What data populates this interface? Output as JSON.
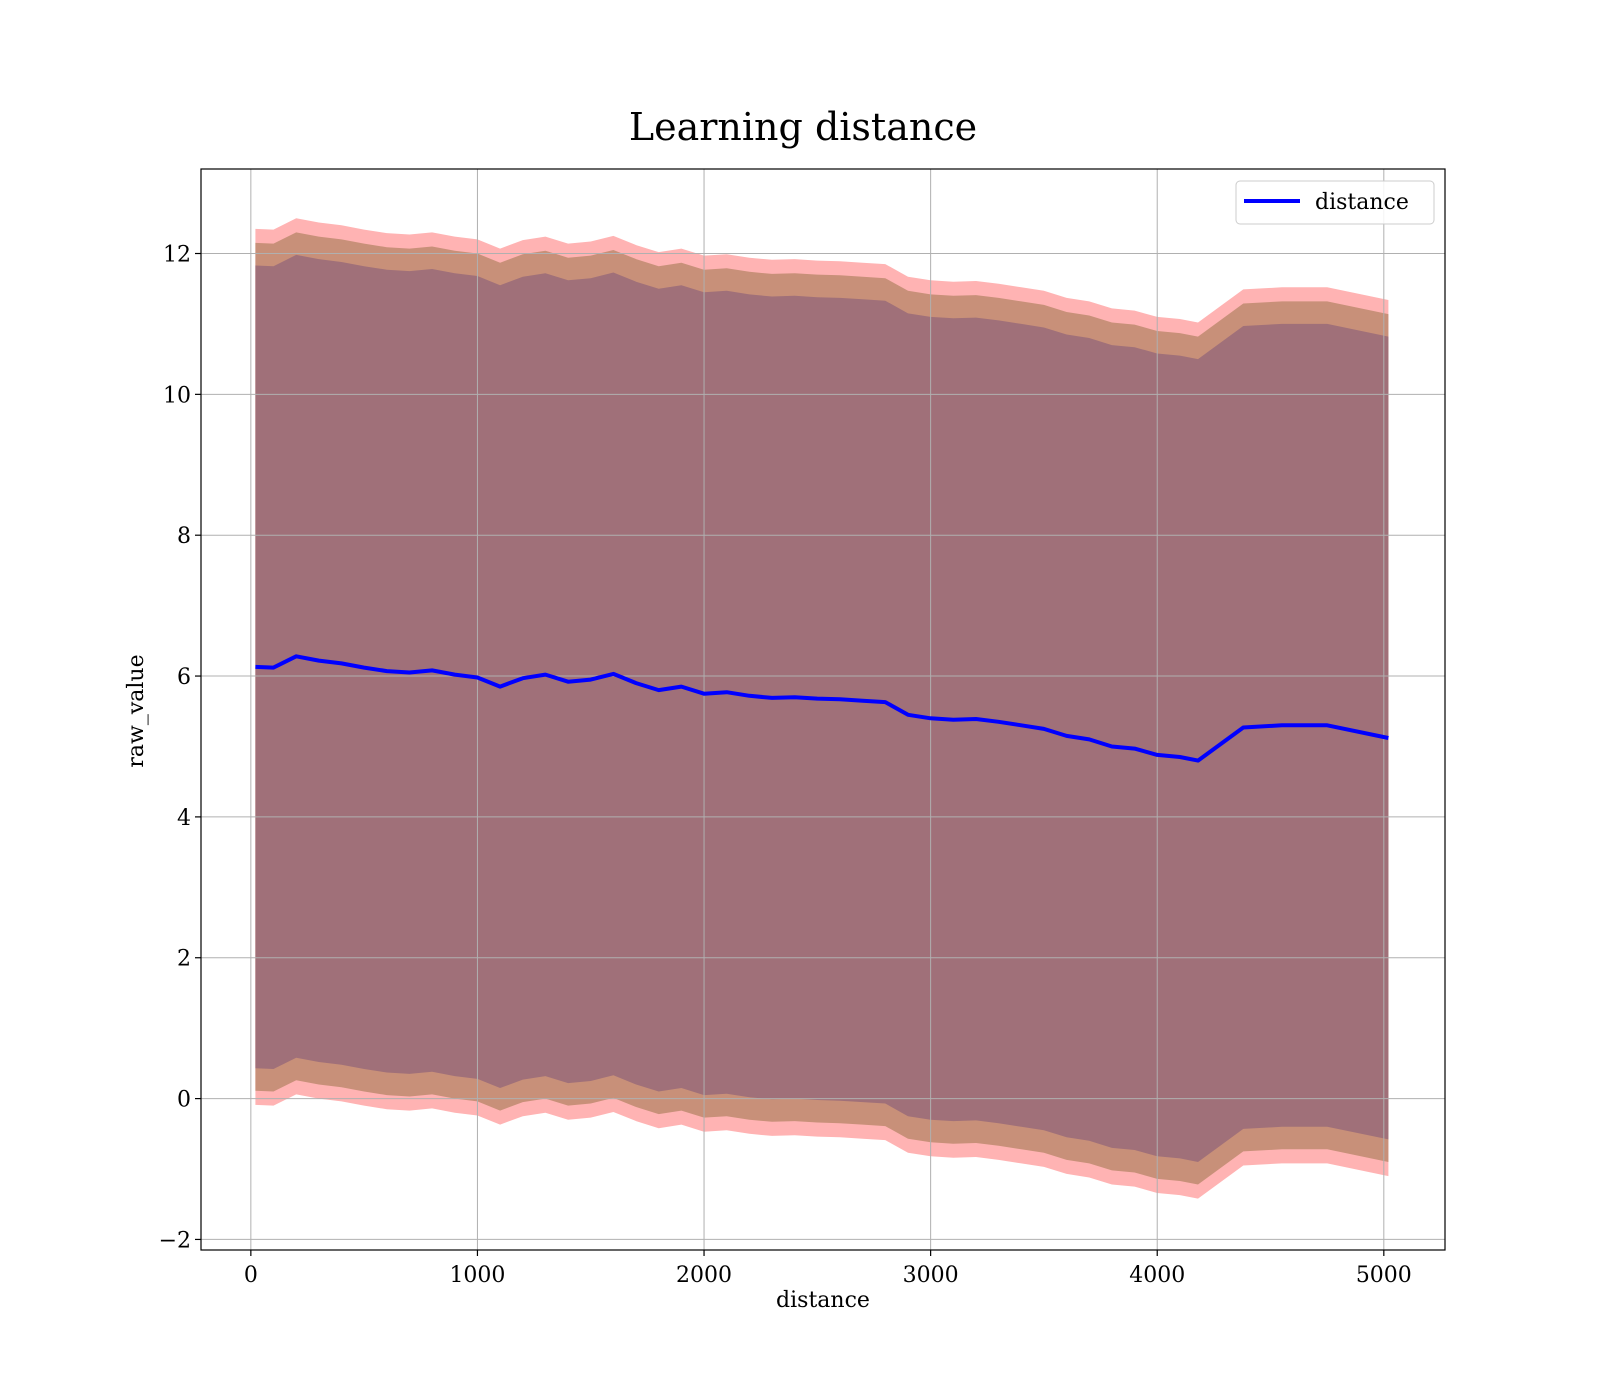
{
  "chart_data": {
    "type": "line",
    "title": "Learning distance",
    "xlabel": "distance",
    "ylabel": "raw_value",
    "xlim": [
      -220,
      5270
    ],
    "ylim": [
      -2.15,
      13.2
    ],
    "xticks": [
      0,
      1000,
      2000,
      3000,
      4000,
      5000
    ],
    "yticks": [
      -2,
      0,
      2,
      4,
      6,
      8,
      10,
      12
    ],
    "xtick_labels": [
      "0",
      "1000",
      "2000",
      "3000",
      "4000",
      "5000"
    ],
    "ytick_labels": [
      "−2",
      "0",
      "2",
      "4",
      "6",
      "8",
      "10",
      "12"
    ],
    "grid": true,
    "legend_position": "upper-right",
    "colors": {
      "line": "#0000ff",
      "band_outer": "#ffb3b3",
      "band_middle": "#c89079",
      "band_inner": "#a07079"
    },
    "x": [
      20,
      100,
      200,
      300,
      400,
      500,
      600,
      700,
      800,
      900,
      1000,
      1100,
      1200,
      1300,
      1400,
      1500,
      1600,
      1700,
      1800,
      1900,
      2000,
      2100,
      2200,
      2300,
      2400,
      2500,
      2600,
      2700,
      2800,
      2900,
      3000,
      3100,
      3200,
      3300,
      3400,
      3500,
      3600,
      3700,
      3800,
      3900,
      4000,
      4100,
      4180,
      4380,
      4550,
      4750,
      5020
    ],
    "series": [
      {
        "name": "distance",
        "values": [
          6.13,
          6.12,
          6.28,
          6.22,
          6.18,
          6.12,
          6.07,
          6.05,
          6.08,
          6.02,
          5.98,
          5.85,
          5.97,
          6.02,
          5.92,
          5.95,
          6.03,
          5.9,
          5.8,
          5.85,
          5.75,
          5.77,
          5.72,
          5.69,
          5.7,
          5.68,
          5.67,
          5.65,
          5.63,
          5.45,
          5.4,
          5.38,
          5.39,
          5.35,
          5.3,
          5.25,
          5.15,
          5.1,
          5.0,
          4.97,
          4.88,
          4.85,
          4.8,
          5.27,
          5.3,
          5.3,
          5.12
        ]
      }
    ],
    "bands": [
      {
        "name": "outer",
        "offset_lower": 6.22,
        "offset_upper": 6.22
      },
      {
        "name": "middle",
        "offset_lower": 6.02,
        "offset_upper": 6.02
      },
      {
        "name": "inner",
        "offset_lower": 5.7,
        "offset_upper": 5.7
      }
    ]
  }
}
